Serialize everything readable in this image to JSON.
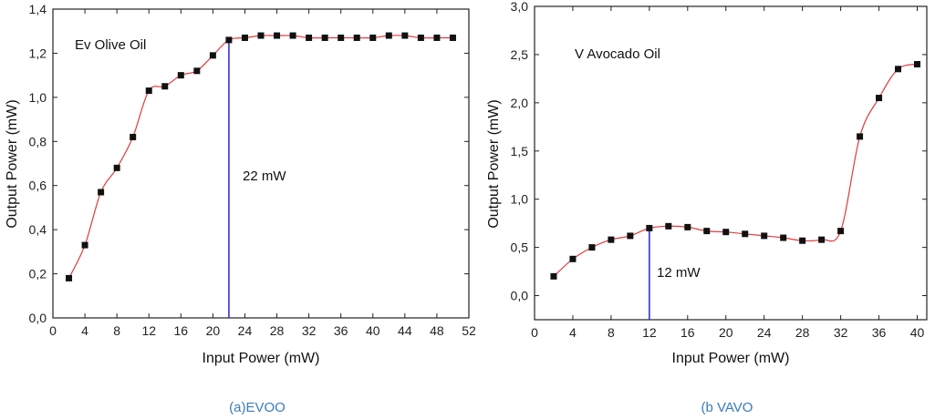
{
  "chart_data": [
    {
      "type": "scatter",
      "title": "Ev Olive Oil",
      "caption": "(a)EVOO",
      "xlabel": "Input Power (mW)",
      "ylabel": "Output Power (mW)",
      "xlim": [
        0,
        52
      ],
      "ylim": [
        0,
        1.4
      ],
      "xticks": [
        "0",
        "4",
        "8",
        "12",
        "16",
        "20",
        "24",
        "28",
        "32",
        "36",
        "40",
        "44",
        "48",
        "52"
      ],
      "yticks": [
        "0,0",
        "0,2",
        "0,4",
        "0,6",
        "0,8",
        "1,0",
        "1,2",
        "1,4"
      ],
      "x": [
        2,
        4,
        6,
        8,
        10,
        12,
        14,
        16,
        18,
        20,
        22,
        24,
        26,
        28,
        30,
        32,
        34,
        36,
        38,
        40,
        42,
        44,
        46,
        48,
        50
      ],
      "y": [
        0.18,
        0.33,
        0.57,
        0.68,
        0.82,
        1.03,
        1.05,
        1.1,
        1.12,
        1.19,
        1.26,
        1.27,
        1.28,
        1.28,
        1.28,
        1.27,
        1.27,
        1.27,
        1.27,
        1.27,
        1.28,
        1.28,
        1.27,
        1.27,
        1.27
      ],
      "fit_color": "#e23b3b",
      "marker_color": "#111111",
      "threshold": {
        "x": 22,
        "label": "22 mW",
        "color": "#3333cc"
      }
    },
    {
      "type": "scatter",
      "title": "V Avocado Oil",
      "caption": "(b VAVO",
      "xlabel": "Input Power (mW)",
      "ylabel": "Output Power (mW)",
      "xlim": [
        0,
        41
      ],
      "ylim": [
        -0.25,
        3.0
      ],
      "xticks": [
        "0",
        "4",
        "8",
        "12",
        "16",
        "20",
        "24",
        "28",
        "32",
        "36",
        "40"
      ],
      "yticks": [
        "0,0",
        "0,5",
        "1,0",
        "1,5",
        "2,0",
        "2,5",
        "3,0"
      ],
      "x": [
        2,
        4,
        6,
        8,
        10,
        12,
        14,
        16,
        18,
        20,
        22,
        24,
        26,
        28,
        30,
        32,
        34,
        36,
        38,
        40
      ],
      "y": [
        0.2,
        0.38,
        0.5,
        0.58,
        0.62,
        0.7,
        0.72,
        0.71,
        0.67,
        0.66,
        0.64,
        0.62,
        0.6,
        0.57,
        0.58,
        0.67,
        1.65,
        2.05,
        2.35,
        2.4
      ],
      "fit_color": "#e23b3b",
      "marker_color": "#111111",
      "threshold": {
        "x": 12,
        "label": "12 mW",
        "color": "#3333cc"
      }
    }
  ]
}
